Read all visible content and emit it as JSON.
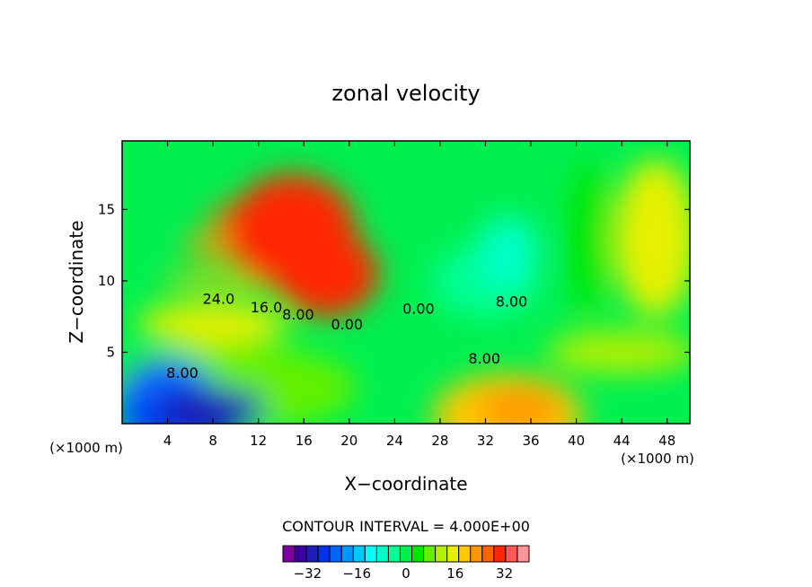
{
  "chart_data": {
    "type": "heatmap",
    "title": "zonal velocity",
    "xlabel": "X−coordinate",
    "ylabel": "Z−coordinate",
    "x_units_left": "(×1000 m)",
    "x_units_right": "(×1000 m)",
    "xlim": [
      0,
      50
    ],
    "ylim": [
      0,
      19.8
    ],
    "x_ticks": [
      4,
      8,
      12,
      16,
      20,
      24,
      28,
      32,
      36,
      40,
      44,
      48
    ],
    "y_ticks": [
      5,
      10,
      15
    ],
    "contour_interval_text": "CONTOUR INTERVAL = 4.000E+00",
    "contour_labels": [
      {
        "text": "24.0",
        "x": 8.5,
        "z": 8.4
      },
      {
        "text": "16.0",
        "x": 12.7,
        "z": 7.8
      },
      {
        "text": "8.00",
        "x": 15.5,
        "z": 7.3
      },
      {
        "text": "0.00",
        "x": 19.8,
        "z": 6.6
      },
      {
        "text": "0.00",
        "x": 26.1,
        "z": 7.7
      },
      {
        "text": "8.00",
        "x": 34.3,
        "z": 8.2
      },
      {
        "text": "8.00",
        "x": 31.9,
        "z": 4.2
      },
      {
        "text": "8.00",
        "x": 5.3,
        "z": 3.2
      }
    ],
    "colorbar": {
      "levels": [
        -40,
        -36,
        -32,
        -28,
        -24,
        -20,
        -16,
        -12,
        -8,
        -4,
        0,
        4,
        8,
        12,
        16,
        20,
        24,
        28,
        32,
        36,
        40
      ],
      "colors": [
        "#7d00a0",
        "#3c00a0",
        "#1e1eb4",
        "#0032e6",
        "#0064ff",
        "#0096ff",
        "#00c8ff",
        "#00ffff",
        "#00ffc8",
        "#00ff96",
        "#00f050",
        "#00e600",
        "#64f000",
        "#b4f000",
        "#e6f000",
        "#ffc800",
        "#ff9600",
        "#ff6400",
        "#ff2800",
        "#ff5a5a",
        "#ff9696"
      ],
      "tick_labels": [
        "−32",
        "−16",
        "0",
        "16",
        "32"
      ],
      "tick_values": [
        -32,
        -16,
        0,
        16,
        32
      ]
    }
  }
}
